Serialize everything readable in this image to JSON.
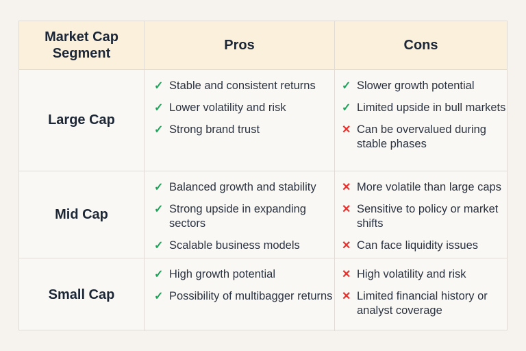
{
  "headers": {
    "segment": "Market Cap Segment",
    "pros": "Pros",
    "cons": "Cons"
  },
  "colors": {
    "check": "#1fa35a",
    "cross": "#e8302c",
    "header_bg": "#fbf0dc"
  },
  "rows": [
    {
      "segment": "Large Cap",
      "pros": [
        {
          "icon": "check",
          "text": "Stable and consistent returns"
        },
        {
          "icon": "check",
          "text": "Lower volatility and risk"
        },
        {
          "icon": "check",
          "text": "Strong brand trust"
        }
      ],
      "cons": [
        {
          "icon": "check",
          "text": "Slower growth potential"
        },
        {
          "icon": "check",
          "text": "Limited upside in bull markets"
        },
        {
          "icon": "cross",
          "text": "Can be overvalued during stable phases"
        }
      ]
    },
    {
      "segment": "Mid Cap",
      "pros": [
        {
          "icon": "check",
          "text": "Balanced growth and stability"
        },
        {
          "icon": "check",
          "text": "Strong upside in expanding sectors"
        },
        {
          "icon": "check",
          "text": "Scalable business models"
        }
      ],
      "cons": [
        {
          "icon": "cross",
          "text": "More volatile than large caps"
        },
        {
          "icon": "cross",
          "text": "Sensitive to policy or market shifts"
        },
        {
          "icon": "cross",
          "text": "Can face liquidity issues"
        }
      ]
    },
    {
      "segment": "Small Cap",
      "pros": [
        {
          "icon": "check",
          "text": "High growth potential"
        },
        {
          "icon": "check",
          "text": "Possibility of multibagger returns"
        }
      ],
      "cons": [
        {
          "icon": "cross",
          "text": "High volatility and risk"
        },
        {
          "icon": "cross",
          "text": "Limited financial history or analyst coverage"
        }
      ]
    }
  ]
}
